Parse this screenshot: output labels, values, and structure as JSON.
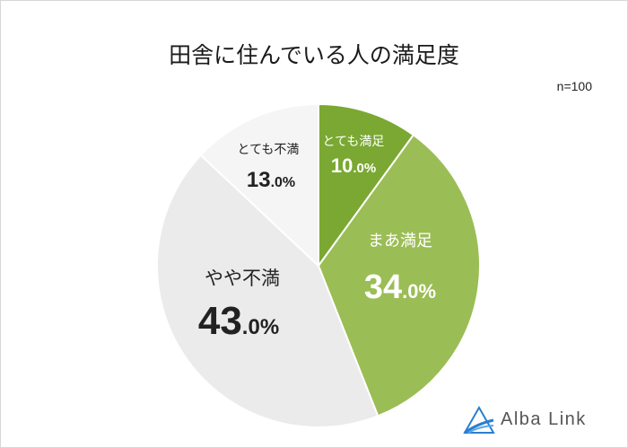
{
  "chart_data": {
    "type": "pie",
    "title": "田舎に住んでいる人の満足度",
    "sample_size": "n=100",
    "slices": [
      {
        "label": "とても満足",
        "value": 10.0,
        "value_main": "10",
        "value_unit": ".0%",
        "color": "#7aa832"
      },
      {
        "label": "まあ満足",
        "value": 34.0,
        "value_main": "34",
        "value_unit": ".0%",
        "color": "#9bbd55"
      },
      {
        "label": "やや不満",
        "value": 43.0,
        "value_main": "43",
        "value_unit": ".0%",
        "color": "#ebebeb"
      },
      {
        "label": "とても不満",
        "value": 13.0,
        "value_main": "13",
        "value_unit": ".0%",
        "color": "#f5f5f5"
      }
    ]
  },
  "logo": {
    "text": "Alba Link",
    "color": "#2a7fd0"
  }
}
